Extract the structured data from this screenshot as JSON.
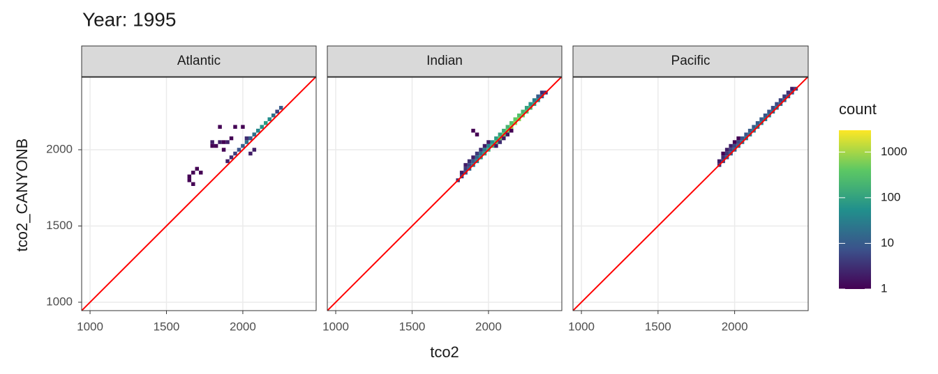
{
  "chart_data": {
    "type": "bin2d",
    "title": "Year: 1995",
    "x_label": "tco2",
    "y_label": "tco2_CANYONB",
    "xlim": [
      945,
      2480
    ],
    "ylim": [
      945,
      2475
    ],
    "xticks": [
      1000,
      1500,
      2000
    ],
    "yticks": [
      1000,
      1500,
      2000
    ],
    "binwidth": 25,
    "grid": true,
    "identity_line": true,
    "identity_color": "#ff0000",
    "legend_title": "count",
    "color_scale": "log",
    "color_lim": [
      1,
      3000
    ],
    "color_ticks": [
      1,
      10,
      100,
      1000
    ],
    "palette": [
      "#440154",
      "#3b528b",
      "#21908c",
      "#5dc863",
      "#fde725"
    ],
    "facets": [
      {
        "name": "Atlantic",
        "x": [
          1650,
          1650,
          1675,
          1700,
          1725,
          1675,
          1800,
          1800,
          1825,
          1850,
          1875,
          1850,
          1900,
          1875,
          1925,
          1950,
          2000,
          1900,
          1925,
          1950,
          1975,
          2000,
          2025,
          2050,
          2075,
          2100,
          2125,
          2150,
          2175,
          2200,
          2225,
          2250,
          2050,
          2075,
          2100,
          2125,
          2150,
          2175,
          2200,
          2225,
          2025,
          2050,
          2075
        ],
        "y": [
          1825,
          1800,
          1850,
          1875,
          1850,
          1775,
          2050,
          2025,
          2025,
          2050,
          2050,
          2150,
          2050,
          2000,
          2075,
          2150,
          2150,
          1925,
          1950,
          1975,
          2000,
          2025,
          2050,
          2075,
          2100,
          2125,
          2150,
          2175,
          2200,
          2225,
          2250,
          2275,
          2075,
          2100,
          2125,
          2150,
          2175,
          2200,
          2225,
          2250,
          2075,
          1975,
          2000
        ],
        "values": [
          1,
          1,
          1,
          1,
          1,
          1,
          2,
          1,
          1,
          2,
          1,
          1,
          2,
          1,
          1,
          1,
          1,
          2,
          3,
          5,
          8,
          12,
          20,
          30,
          50,
          80,
          150,
          200,
          150,
          100,
          40,
          10,
          10,
          20,
          40,
          60,
          80,
          50,
          20,
          5,
          3,
          2,
          2
        ]
      },
      {
        "name": "Indian",
        "x": [
          1800,
          1825,
          1850,
          1875,
          1900,
          1925,
          1950,
          1975,
          2000,
          2025,
          2050,
          2075,
          2100,
          2125,
          2150,
          2175,
          2200,
          2225,
          2250,
          2275,
          2300,
          2325,
          2350,
          2375,
          1825,
          1850,
          1875,
          1900,
          1925,
          1950,
          1975,
          2000,
          2025,
          2050,
          2075,
          2100,
          2125,
          2150,
          2175,
          2200,
          2225,
          2250,
          2275,
          2300,
          2325,
          2350,
          1850,
          1875,
          1900,
          1925,
          1950,
          1975,
          2000,
          2050,
          2075,
          2100,
          2125,
          2150,
          1900,
          1925
        ],
        "y": [
          1800,
          1825,
          1850,
          1875,
          1900,
          1925,
          1950,
          1975,
          2000,
          2025,
          2050,
          2075,
          2100,
          2125,
          2150,
          2175,
          2200,
          2225,
          2250,
          2275,
          2300,
          2325,
          2350,
          2375,
          1850,
          1875,
          1900,
          1925,
          1950,
          1975,
          2000,
          2025,
          2050,
          2075,
          2100,
          2125,
          2150,
          2175,
          2200,
          2225,
          2250,
          2275,
          2300,
          2325,
          2350,
          2375,
          1900,
          1925,
          1950,
          1975,
          2000,
          2025,
          2050,
          2025,
          2050,
          2075,
          2100,
          2125,
          2125,
          2100
        ],
        "values": [
          3,
          5,
          8,
          15,
          25,
          40,
          60,
          100,
          150,
          200,
          300,
          400,
          500,
          600,
          800,
          900,
          700,
          500,
          300,
          200,
          100,
          50,
          10,
          3,
          2,
          4,
          6,
          10,
          15,
          20,
          30,
          40,
          60,
          80,
          100,
          150,
          200,
          300,
          400,
          300,
          200,
          100,
          60,
          30,
          10,
          3,
          2,
          3,
          2,
          4,
          3,
          2,
          2,
          2,
          3,
          2,
          2,
          1,
          1,
          1
        ]
      },
      {
        "name": "Pacific",
        "x": [
          1900,
          1925,
          1950,
          1975,
          2000,
          2025,
          2050,
          2075,
          2100,
          2125,
          2150,
          2175,
          2200,
          2225,
          2250,
          2275,
          2300,
          2325,
          2350,
          2375,
          2400,
          1900,
          1925,
          1950,
          1975,
          2000,
          2025,
          2050,
          2075,
          2100,
          2125,
          2150,
          2175,
          2200,
          2225,
          2250,
          2275,
          2300,
          2325,
          2350,
          2375,
          1925,
          1950,
          1975,
          2000,
          2025
        ],
        "y": [
          1900,
          1925,
          1950,
          1975,
          2000,
          2025,
          2050,
          2075,
          2100,
          2125,
          2150,
          2175,
          2200,
          2225,
          2250,
          2275,
          2300,
          2325,
          2350,
          2375,
          2400,
          1925,
          1950,
          1975,
          2000,
          2025,
          2050,
          2075,
          2100,
          2125,
          2150,
          2175,
          2200,
          2225,
          2250,
          2275,
          2300,
          2325,
          2350,
          2375,
          2400,
          1975,
          2000,
          2025,
          2050,
          2075
        ],
        "values": [
          3,
          5,
          8,
          10,
          12,
          15,
          20,
          20,
          25,
          25,
          30,
          30,
          25,
          25,
          20,
          20,
          15,
          12,
          10,
          8,
          5,
          2,
          3,
          4,
          5,
          6,
          6,
          8,
          8,
          10,
          10,
          10,
          10,
          8,
          8,
          6,
          6,
          5,
          4,
          3,
          2,
          1,
          2,
          2,
          1,
          1
        ]
      }
    ]
  }
}
